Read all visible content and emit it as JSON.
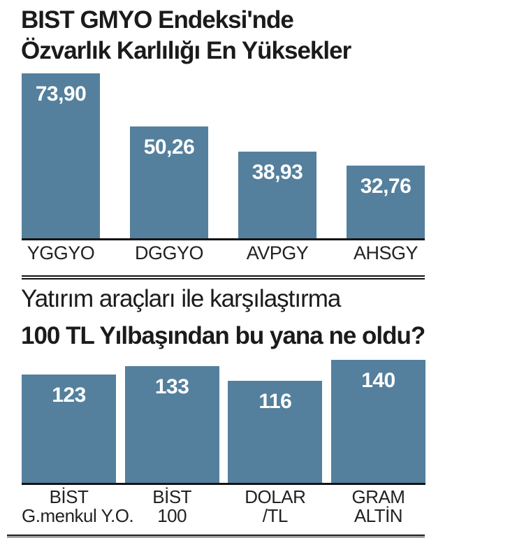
{
  "page": {
    "background": "#ffffff",
    "text_color": "#1b1b1b",
    "axis_label_color": "#222222",
    "rule_color": "#141414"
  },
  "chart_data": [
    {
      "type": "bar",
      "title": "BIST GMYO Endeksi'nde Özvarlık Karlılığı En Yüksekler",
      "title_lines": [
        "BIST GMYO Endeksi'nde",
        "Özvarlık Karlılığı En Yüksekler"
      ],
      "categories": [
        "YGGYO",
        "DGGYO",
        "AVPGY",
        "AHSGY"
      ],
      "values": [
        73.9,
        50.26,
        38.93,
        32.76
      ],
      "value_labels": [
        "73,90",
        "50,26",
        "38,93",
        "32,76"
      ],
      "ylim": [
        0,
        74
      ],
      "xlabel": "",
      "ylabel": "",
      "grid": false,
      "legend": "none",
      "bar_color": "#54809D",
      "value_label_color": "#ffffff"
    },
    {
      "type": "bar",
      "kicker": "Yatırım araçları ile karşılaştırma",
      "title": "100 TL Yılbaşından bu yana ne oldu?",
      "categories": [
        "BİST G.menkul Y.O.",
        "BİST 100",
        "DOLAR /TL",
        "GRAM ALTİN"
      ],
      "category_lines": [
        [
          "BİST",
          "G.menkul Y.O."
        ],
        [
          "BİST",
          "100"
        ],
        [
          "DOLAR",
          "/TL"
        ],
        [
          "GRAM",
          "ALTİN"
        ]
      ],
      "values": [
        123,
        133,
        116,
        140
      ],
      "value_labels": [
        "123",
        "133",
        "116",
        "140"
      ],
      "ylim": [
        0,
        140
      ],
      "xlabel": "",
      "ylabel": "",
      "grid": false,
      "legend": "none",
      "bar_color": "#54809D",
      "value_label_color": "#ffffff"
    }
  ]
}
